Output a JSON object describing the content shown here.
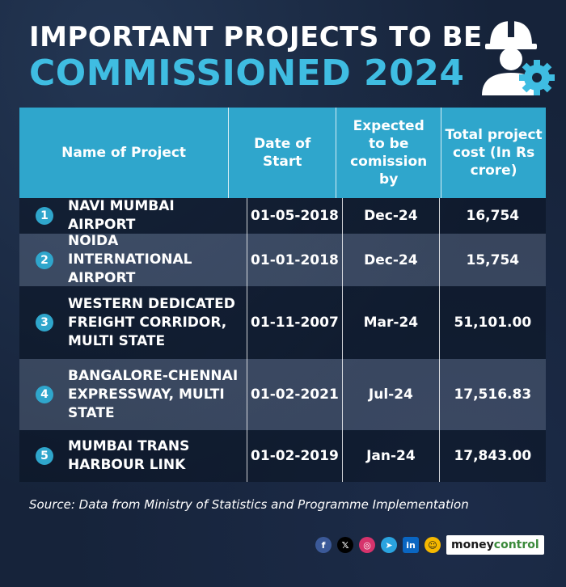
{
  "header": {
    "title_line1": "IMPORTANT PROJECTS TO BE",
    "title_line2": "COMMISSIONED 2024"
  },
  "table": {
    "headers": {
      "name": "Name of Project",
      "date": "Date of Start",
      "expected": "Expected to be comission by",
      "cost": "Total project cost (In Rs crore)"
    },
    "rows": [
      {
        "num": "1",
        "name": "NAVI MUMBAI AIRPORT",
        "date": "01-05-2018",
        "expected": "Dec-24",
        "cost": "16,754"
      },
      {
        "num": "2",
        "name": "NOIDA INTERNATIONAL AIRPORT",
        "date": "01-01-2018",
        "expected": "Dec-24",
        "cost": "15,754"
      },
      {
        "num": "3",
        "name": "WESTERN DEDICATED FREIGHT CORRIDOR, MULTI STATE",
        "date": "01-11-2007",
        "expected": "Mar-24",
        "cost": "51,101.00"
      },
      {
        "num": "4",
        "name": "BANGALORE-CHENNAI EXPRESSWAY, MULTI STATE",
        "date": "01-02-2021",
        "expected": "Jul-24",
        "cost": "17,516.83"
      },
      {
        "num": "5",
        "name": "MUMBAI TRANS HARBOUR LINK",
        "date": "01-02-2019",
        "expected": "Jan-24",
        "cost": "17,843.00"
      }
    ]
  },
  "source": "Source: Data from Ministry of Statistics and Programme Implementation",
  "social": {
    "facebook": "f",
    "x": "𝕏",
    "instagram": "◎",
    "telegram": "➤",
    "linkedin": "in",
    "other": "☺"
  },
  "brand": {
    "part1": "money",
    "part2": "control"
  },
  "colors": {
    "accent": "#3fbde2",
    "header_bg": "#2fa6cc",
    "background": "#16233a"
  }
}
